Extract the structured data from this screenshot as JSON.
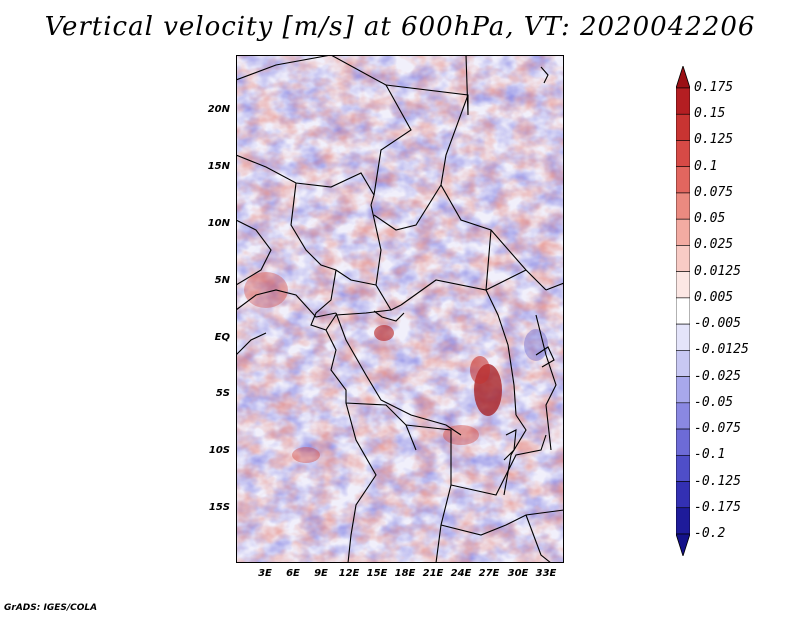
{
  "title": "Vertical velocity [m/s] at 600hPa, VT: 2020042206",
  "credit": "GrADS: IGES/COLA",
  "map": {
    "lat_labels": [
      "20N",
      "15N",
      "10N",
      "5N",
      "EQ",
      "5S",
      "10S",
      "15S"
    ],
    "lon_labels": [
      "3E",
      "6E",
      "9E",
      "12E",
      "15E",
      "18E",
      "21E",
      "24E",
      "27E",
      "30E",
      "33E"
    ],
    "extent": {
      "lon_min": 0,
      "lon_max": 35,
      "lat_min": -20,
      "lat_max": 24.5
    }
  },
  "colorbar": {
    "levels": [
      "0.175",
      "0.15",
      "0.125",
      "0.1",
      "0.075",
      "0.05",
      "0.025",
      "0.0125",
      "0.005",
      "-0.005",
      "-0.0125",
      "-0.025",
      "-0.05",
      "-0.075",
      "-0.1",
      "-0.125",
      "-0.175",
      "-0.2"
    ],
    "colors": [
      "#9b1015",
      "#b41e22",
      "#c83432",
      "#d74a46",
      "#e2665f",
      "#eb8a80",
      "#f3aba2",
      "#f8cbc5",
      "#fce7e4",
      "#ffffff",
      "#e4e4fa",
      "#c8c8f3",
      "#a8a8ec",
      "#8a88e2",
      "#6d6bd7",
      "#4f4ec8",
      "#3330b3",
      "#1e1b9a",
      "#14128a"
    ]
  }
}
